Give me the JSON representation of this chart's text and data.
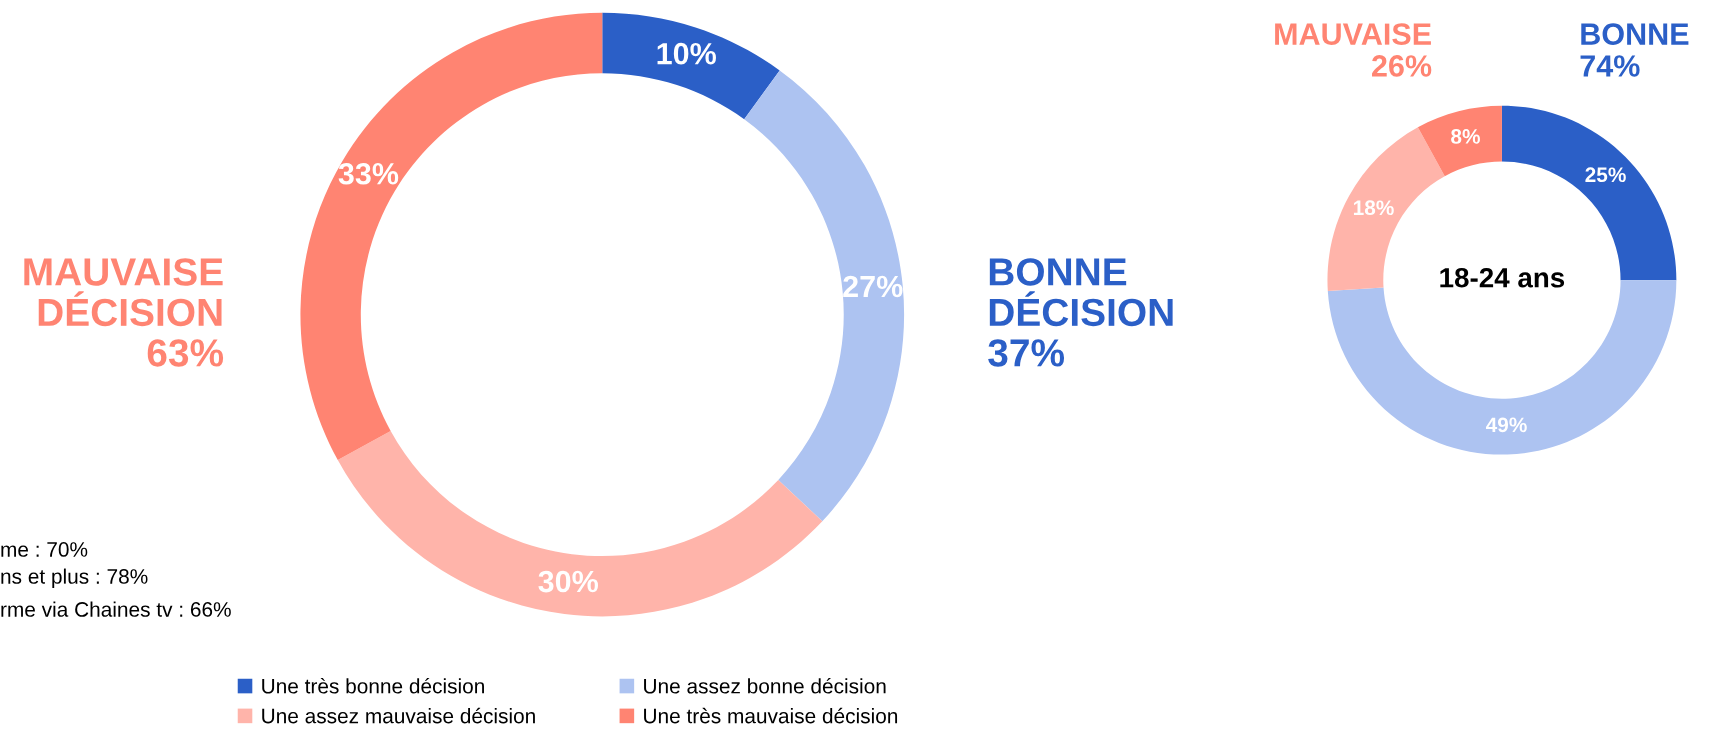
{
  "chart_data": [
    {
      "type": "donut",
      "categories": [
        "Une très bonne décision",
        "Une assez bonne décision",
        "Une assez mauvaise décision",
        "Une très mauvaise décision"
      ],
      "values": [
        10,
        27,
        30,
        33
      ],
      "colors": [
        "#2b5fc7",
        "#adc3f1",
        "#ffb4aa",
        "#ff8472"
      ],
      "value_labels": [
        "10%",
        "27%",
        "30%",
        "33%"
      ],
      "legend": "bottom",
      "annotations": [
        "MAUVAISE\nDÉCISION\n63%",
        "BONNE\nDÉCISION\n37%",
        "me : 70%",
        "ns et plus : 78%",
        "rme via Chaines tv : 66%"
      ]
    },
    {
      "type": "donut",
      "title": "18-24 ans",
      "categories": [
        null,
        null,
        null,
        null
      ],
      "values": [
        25,
        49,
        18,
        8
      ],
      "colors": [
        "#2b5fc7",
        "#adc3f1",
        "#ffb4aa",
        "#ff8472"
      ],
      "value_labels": [
        "25%",
        "49%",
        "18%",
        "8%"
      ],
      "annotations": [
        "MAUVAISE\n26%",
        "BONNE\n74%"
      ]
    }
  ]
}
